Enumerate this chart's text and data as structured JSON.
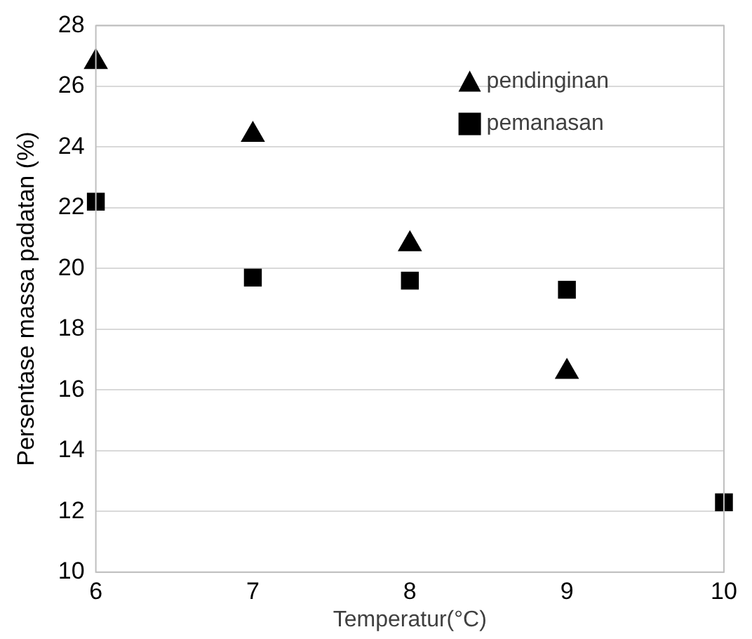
{
  "chart_data": {
    "type": "scatter",
    "xlabel": "Temperatur(°C)",
    "ylabel": "Persentase massa padatan (%)",
    "xlim": [
      6,
      10
    ],
    "xticks": [
      6,
      7,
      8,
      9,
      10
    ],
    "ylim": [
      10,
      28
    ],
    "yticks": [
      10,
      12,
      14,
      16,
      18,
      20,
      22,
      24,
      26,
      28
    ],
    "grid": "y",
    "legend": "top right",
    "series": [
      {
        "name": "pendinginan",
        "color": "#000000",
        "marker": "triangle",
        "x": [
          6,
          7,
          8,
          9
        ],
        "values": [
          26.8,
          24.4,
          20.8,
          16.6
        ]
      },
      {
        "name": "pemanasan",
        "color": "#000000",
        "marker": "square",
        "x": [
          6,
          7,
          8,
          9,
          10
        ],
        "values": [
          22.2,
          19.7,
          19.6,
          19.3,
          12.3
        ]
      }
    ]
  }
}
